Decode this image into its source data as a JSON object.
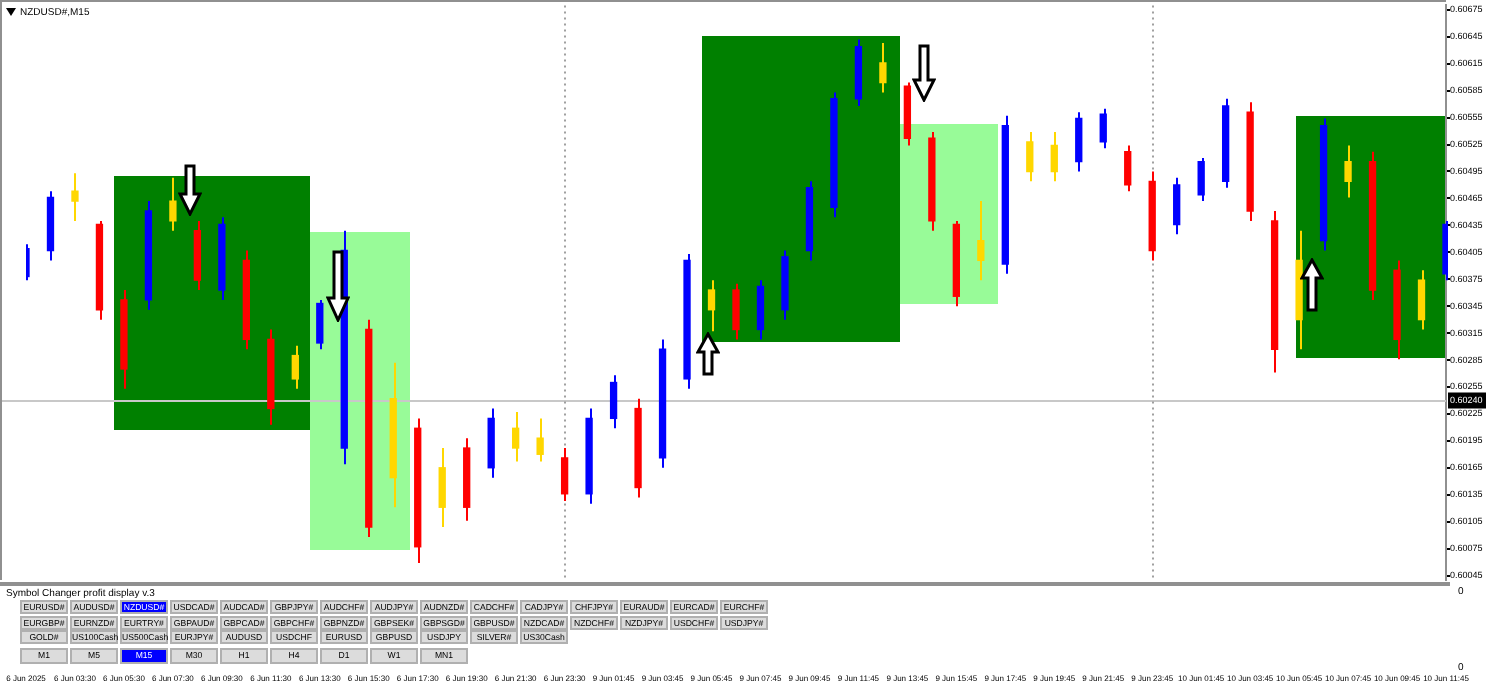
{
  "chart_data": [
    {
      "type": "candlestick",
      "title": "NZDUSD#,M15",
      "categories": [
        "6 Jun 2025",
        null,
        "6 Jun 03:30",
        null,
        "6 Jun 05:30",
        null,
        "6 Jun 07:30",
        null,
        "6 Jun 09:30",
        null,
        "6 Jun 11:30",
        null,
        "6 Jun 13:30",
        null,
        "6 Jun 15:30",
        null,
        "6 Jun 17:30",
        null,
        "6 Jun 19:30",
        null,
        "6 Jun 21:30",
        null,
        "6 Jun 23:30",
        null,
        "9 Jun 01:45",
        null,
        "9 Jun 03:45",
        null,
        "9 Jun 05:45",
        null,
        "9 Jun 07:45",
        null,
        "9 Jun 09:45",
        null,
        "9 Jun 11:45",
        null,
        "9 Jun 13:45",
        null,
        "9 Jun 15:45",
        null,
        "9 Jun 17:45",
        null,
        "9 Jun 19:45",
        null,
        "9 Jun 21:45",
        null,
        "9 Jun 23:45",
        null,
        "10 Jun 01:45",
        null,
        "10 Jun 03:45",
        null,
        "10 Jun 05:45",
        null,
        "10 Jun 07:45",
        null,
        "10 Jun 09:45",
        null,
        "10 Jun 11:45"
      ],
      "ohlc": [
        [
          0.60378,
          0.60414,
          0.60374,
          0.60409
        ],
        [
          0.60407,
          0.60473,
          0.60396,
          0.60466
        ],
        [
          0.60462,
          0.60493,
          0.6044,
          0.60473
        ],
        [
          0.60436,
          0.6044,
          0.6033,
          0.60341
        ],
        [
          0.60352,
          0.60363,
          0.60253,
          0.60275
        ],
        [
          0.60352,
          0.60462,
          0.60341,
          0.60451
        ],
        [
          0.60462,
          0.60488,
          0.60429,
          0.6044
        ],
        [
          0.60429,
          0.6044,
          0.60363,
          0.60374
        ],
        [
          0.60363,
          0.60444,
          0.60352,
          0.60436
        ],
        [
          0.60396,
          0.60407,
          0.60297,
          0.60308
        ],
        [
          0.60308,
          0.60319,
          0.60213,
          0.60231
        ],
        [
          0.60264,
          0.60301,
          0.60253,
          0.6029
        ],
        [
          0.60304,
          0.60352,
          0.60297,
          0.60348
        ],
        [
          0.60187,
          0.60429,
          0.60169,
          0.60407
        ],
        [
          0.60319,
          0.6033,
          0.60088,
          0.60099
        ],
        [
          0.60242,
          0.60282,
          0.60121,
          0.60154
        ],
        [
          0.60209,
          0.6022,
          0.60059,
          0.60077
        ],
        [
          0.60165,
          0.60187,
          0.60099,
          0.60121
        ],
        [
          0.60187,
          0.60198,
          0.60106,
          0.60121
        ],
        [
          0.60165,
          0.60231,
          0.60154,
          0.6022
        ],
        [
          0.60209,
          0.60227,
          0.60172,
          0.60187
        ],
        [
          0.60198,
          0.6022,
          0.60172,
          0.6018
        ],
        [
          0.60176,
          0.60187,
          0.60128,
          0.60136
        ],
        [
          0.60136,
          0.60231,
          0.60125,
          0.6022
        ],
        [
          0.6022,
          0.60268,
          0.60209,
          0.6026
        ],
        [
          0.60231,
          0.60242,
          0.60132,
          0.60143
        ],
        [
          0.60176,
          0.60308,
          0.60165,
          0.60297
        ],
        [
          0.60264,
          0.60403,
          0.60253,
          0.60396
        ],
        [
          0.60363,
          0.60374,
          0.60317,
          0.60341
        ],
        [
          0.60363,
          0.6037,
          0.60308,
          0.60319
        ],
        [
          0.60319,
          0.60374,
          0.60308,
          0.60367
        ],
        [
          0.60341,
          0.60407,
          0.6033,
          0.604
        ],
        [
          0.60407,
          0.60484,
          0.60396,
          0.60477
        ],
        [
          0.60455,
          0.60583,
          0.60444,
          0.60576
        ],
        [
          0.60576,
          0.60642,
          0.60568,
          0.60634
        ],
        [
          0.60616,
          0.60638,
          0.60583,
          0.60594
        ],
        [
          0.6059,
          0.60594,
          0.60524,
          0.60532
        ],
        [
          0.60532,
          0.60539,
          0.60429,
          0.6044
        ],
        [
          0.60436,
          0.6044,
          0.60345,
          0.60356
        ],
        [
          0.60396,
          0.60462,
          0.60374,
          0.60418
        ],
        [
          0.60392,
          0.60557,
          0.60381,
          0.60546
        ],
        [
          0.60528,
          0.60539,
          0.60484,
          0.60495
        ],
        [
          0.60495,
          0.60539,
          0.60484,
          0.60524
        ],
        [
          0.60506,
          0.60561,
          0.60495,
          0.60554
        ],
        [
          0.60528,
          0.60565,
          0.60521,
          0.60559
        ],
        [
          0.60517,
          0.60524,
          0.60473,
          0.6048
        ],
        [
          0.60484,
          0.60495,
          0.60396,
          0.60407
        ],
        [
          0.60436,
          0.60488,
          0.60425,
          0.6048
        ],
        [
          0.60469,
          0.6051,
          0.60462,
          0.60506
        ],
        [
          0.60484,
          0.60576,
          0.60477,
          0.60568
        ],
        [
          0.60561,
          0.60572,
          0.6044,
          0.60451
        ],
        [
          0.6044,
          0.60451,
          0.60271,
          0.60297
        ],
        [
          0.6033,
          0.60429,
          0.60297,
          0.60396
        ],
        [
          0.60418,
          0.60554,
          0.60407,
          0.60546
        ],
        [
          0.60506,
          0.60524,
          0.60466,
          0.60484
        ],
        [
          0.60506,
          0.60517,
          0.60352,
          0.60363
        ],
        [
          0.60385,
          0.60396,
          0.60286,
          0.60308
        ],
        [
          0.6033,
          0.60385,
          0.60319,
          0.60374
        ],
        [
          0.60381,
          0.6044,
          0.60374,
          0.60436
        ]
      ],
      "colors": [
        "#0000ff",
        "#0000ff",
        "#ffd700",
        "#ff0000",
        "#ff0000",
        "#0000ff",
        "#ffd700",
        "#ff0000",
        "#0000ff",
        "#ff0000",
        "#ff0000",
        "#ffd700",
        "#0000ff",
        "#0000ff",
        "#ff0000",
        "#ffd700",
        "#ff0000",
        "#ffd700",
        "#ff0000",
        "#0000ff",
        "#ffd700",
        "#ffd700",
        "#ff0000",
        "#0000ff",
        "#0000ff",
        "#ff0000",
        "#0000ff",
        "#0000ff",
        "#ffd700",
        "#ff0000",
        "#0000ff",
        "#0000ff",
        "#0000ff",
        "#0000ff",
        "#0000ff",
        "#ffd700",
        "#ff0000",
        "#ff0000",
        "#ff0000",
        "#ffd700",
        "#0000ff",
        "#ffd700",
        "#ffd700",
        "#0000ff",
        "#0000ff",
        "#ff0000",
        "#ff0000",
        "#0000ff",
        "#0000ff",
        "#0000ff",
        "#ff0000",
        "#ff0000",
        "#ffd700",
        "#0000ff",
        "#ffd700",
        "#ff0000",
        "#ff0000",
        "#ffd700",
        "#0000ff"
      ],
      "ylim": [
        0.6004,
        0.6068
      ],
      "yticks": [
        0.60045,
        0.60075,
        0.60105,
        0.60135,
        0.60165,
        0.60195,
        0.60225,
        0.60255,
        0.60285,
        0.60315,
        0.60345,
        0.60375,
        0.60405,
        0.60435,
        0.60465,
        0.60495,
        0.60525,
        0.60555,
        0.60585,
        0.60615,
        0.60645,
        0.60675
      ],
      "ref_lines": [
        {
          "axis": "y",
          "value": 0.6024,
          "label": "0.60240",
          "color": "#c8c8c8",
          "line_style": "solid"
        },
        {
          "axis": "x",
          "value": "6 Jun 23:30",
          "color": "#a0a0a0",
          "line_style": "dotted"
        },
        {
          "axis": "x",
          "value": "9 Jun 23:45",
          "color": "#a0a0a0",
          "line_style": "dotted"
        }
      ],
      "grid": false,
      "legend": false
    },
    {
      "type": "other",
      "title": "Symbol Changer profit display v.3",
      "annotations": [
        "EURUSD#",
        "AUDUSD#",
        "NZDUSD#",
        "USDCAD#",
        "AUDCAD#",
        "GBPJPY#",
        "AUDCHF#",
        "AUDJPY#",
        "AUDNZD#",
        "CADCHF#",
        "CADJPY#",
        "CHFJPY#",
        "EURAUD#",
        "EURCAD#",
        "EURCHF#",
        "EURGBP#",
        "EURNZD#",
        "EURTRY#",
        "GBPAUD#",
        "GBPCAD#",
        "GBPCHF#",
        "GBPNZD#",
        "GBPSEK#",
        "GBPSGD#",
        "GBPUSD#",
        "NZDCAD#",
        "NZDCHF#",
        "NZDJPY#",
        "USDCHF#",
        "USDJPY#",
        "GOLD#",
        "US100Cash",
        "US500Cash",
        "EURJPY#",
        "AUDUSD",
        "USDCHF",
        "EURUSD",
        "GBPUSD",
        "USDJPY",
        "SILVER#",
        "US30Cash",
        "M1",
        "M5",
        "M15",
        "M30",
        "H1",
        "H4",
        "D1",
        "W1",
        "MN1",
        "0",
        "0"
      ]
    }
  ]
}
